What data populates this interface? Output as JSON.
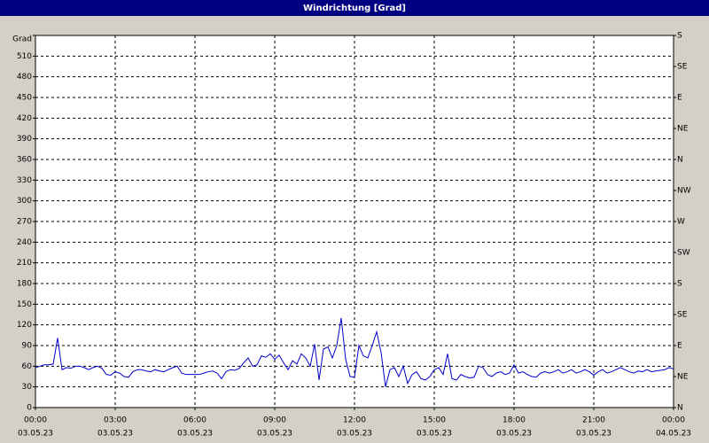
{
  "chart_data": {
    "type": "line",
    "title": "Windrichtung [Grad]",
    "x": [
      0,
      10,
      20,
      30,
      40,
      50,
      60,
      70,
      80,
      90,
      100,
      110,
      120,
      130,
      140,
      150,
      160,
      170,
      180,
      190,
      200,
      210,
      220,
      230,
      240,
      250,
      260,
      270,
      280,
      290,
      300,
      310,
      320,
      330,
      340,
      350,
      360,
      370,
      380,
      390,
      400,
      410,
      420,
      430,
      440,
      450,
      460,
      470,
      480,
      490,
      500,
      510,
      520,
      530,
      540,
      550,
      560,
      570,
      580,
      590,
      600,
      610,
      620,
      630,
      640,
      650,
      660,
      670,
      680,
      690,
      700,
      710,
      720,
      730,
      740,
      750,
      760,
      770,
      780,
      790,
      800,
      810,
      820,
      830,
      840,
      850,
      860,
      870,
      880,
      890,
      900,
      910,
      920,
      930,
      940,
      950,
      960,
      970,
      980,
      990,
      1000,
      1010,
      1020,
      1030,
      1040,
      1050,
      1060,
      1070,
      1080,
      1090,
      1100,
      1110,
      1120,
      1130,
      1140,
      1150,
      1160,
      1170,
      1180,
      1190,
      1200,
      1210,
      1220,
      1230,
      1240,
      1250,
      1260,
      1270,
      1280,
      1290,
      1300,
      1310,
      1320,
      1330,
      1340,
      1350,
      1360,
      1370,
      1380,
      1390,
      1400,
      1410,
      1420,
      1430,
      1440
    ],
    "series": [
      {
        "color": "#0000cc",
        "values": [
          58,
          60,
          62,
          62,
          63,
          101,
          55,
          58,
          57,
          60,
          60,
          58,
          55,
          58,
          60,
          57,
          48,
          47,
          52,
          50,
          45,
          44,
          52,
          55,
          55,
          53,
          52,
          55,
          53,
          52,
          55,
          58,
          60,
          50,
          48,
          48,
          48,
          48,
          50,
          52,
          53,
          50,
          42,
          52,
          55,
          54,
          57,
          65,
          72,
          60,
          62,
          75,
          73,
          78,
          70,
          76,
          65,
          55,
          68,
          63,
          78,
          72,
          60,
          92,
          40,
          85,
          88,
          72,
          90,
          130,
          70,
          45,
          44,
          90,
          75,
          72,
          90,
          110,
          80,
          30,
          55,
          58,
          45,
          60,
          35,
          48,
          52,
          42,
          40,
          45,
          55,
          58,
          48,
          78,
          42,
          40,
          48,
          45,
          43,
          44,
          60,
          58,
          48,
          45,
          50,
          52,
          48,
          50,
          62,
          50,
          52,
          48,
          45,
          44,
          50,
          52,
          50,
          52,
          55,
          50,
          52,
          55,
          50,
          52,
          55,
          52,
          47,
          52,
          55,
          50,
          52,
          55,
          58,
          55,
          52,
          50,
          53,
          52,
          55,
          52,
          53,
          54,
          55,
          58,
          56
        ]
      }
    ],
    "xlim": [
      0,
      1440
    ],
    "xticks": [
      {
        "value": 0,
        "label": [
          "00:00",
          "03.05.23"
        ]
      },
      {
        "value": 180,
        "label": [
          "03:00",
          "03.05.23"
        ]
      },
      {
        "value": 360,
        "label": [
          "06:00",
          "03.05.23"
        ]
      },
      {
        "value": 540,
        "label": [
          "09:00",
          "03.05.23"
        ]
      },
      {
        "value": 720,
        "label": [
          "12:00",
          "03.05.23"
        ]
      },
      {
        "value": 900,
        "label": [
          "15:00",
          "03.05.23"
        ]
      },
      {
        "value": 1080,
        "label": [
          "18:00",
          "03.05.23"
        ]
      },
      {
        "value": 1260,
        "label": [
          "21:00",
          "03.05.23"
        ]
      },
      {
        "value": 1440,
        "label": [
          "00:00",
          "04.05.23"
        ]
      }
    ],
    "ylim": [
      0,
      540
    ],
    "yticks": [
      0,
      30,
      60,
      90,
      120,
      150,
      180,
      210,
      240,
      270,
      300,
      330,
      360,
      390,
      420,
      450,
      480,
      510,
      {
        "value": 540,
        "label": "Grad"
      }
    ],
    "y2lim": [
      0,
      540
    ],
    "y2ticks": [
      {
        "value": 0,
        "label": "N"
      },
      {
        "value": 45,
        "label": "NE"
      },
      {
        "value": 90,
        "label": "E"
      },
      {
        "value": 135,
        "label": "SE"
      },
      {
        "value": 180,
        "label": "S"
      },
      {
        "value": 225,
        "label": "SW"
      },
      {
        "value": 270,
        "label": "W"
      },
      {
        "value": 315,
        "label": "NW"
      },
      {
        "value": 360,
        "label": "N"
      },
      {
        "value": 405,
        "label": "NE"
      },
      {
        "value": 450,
        "label": "E"
      },
      {
        "value": 495,
        "label": "SE"
      },
      {
        "value": 540,
        "label": "S"
      }
    ],
    "grid": true
  }
}
